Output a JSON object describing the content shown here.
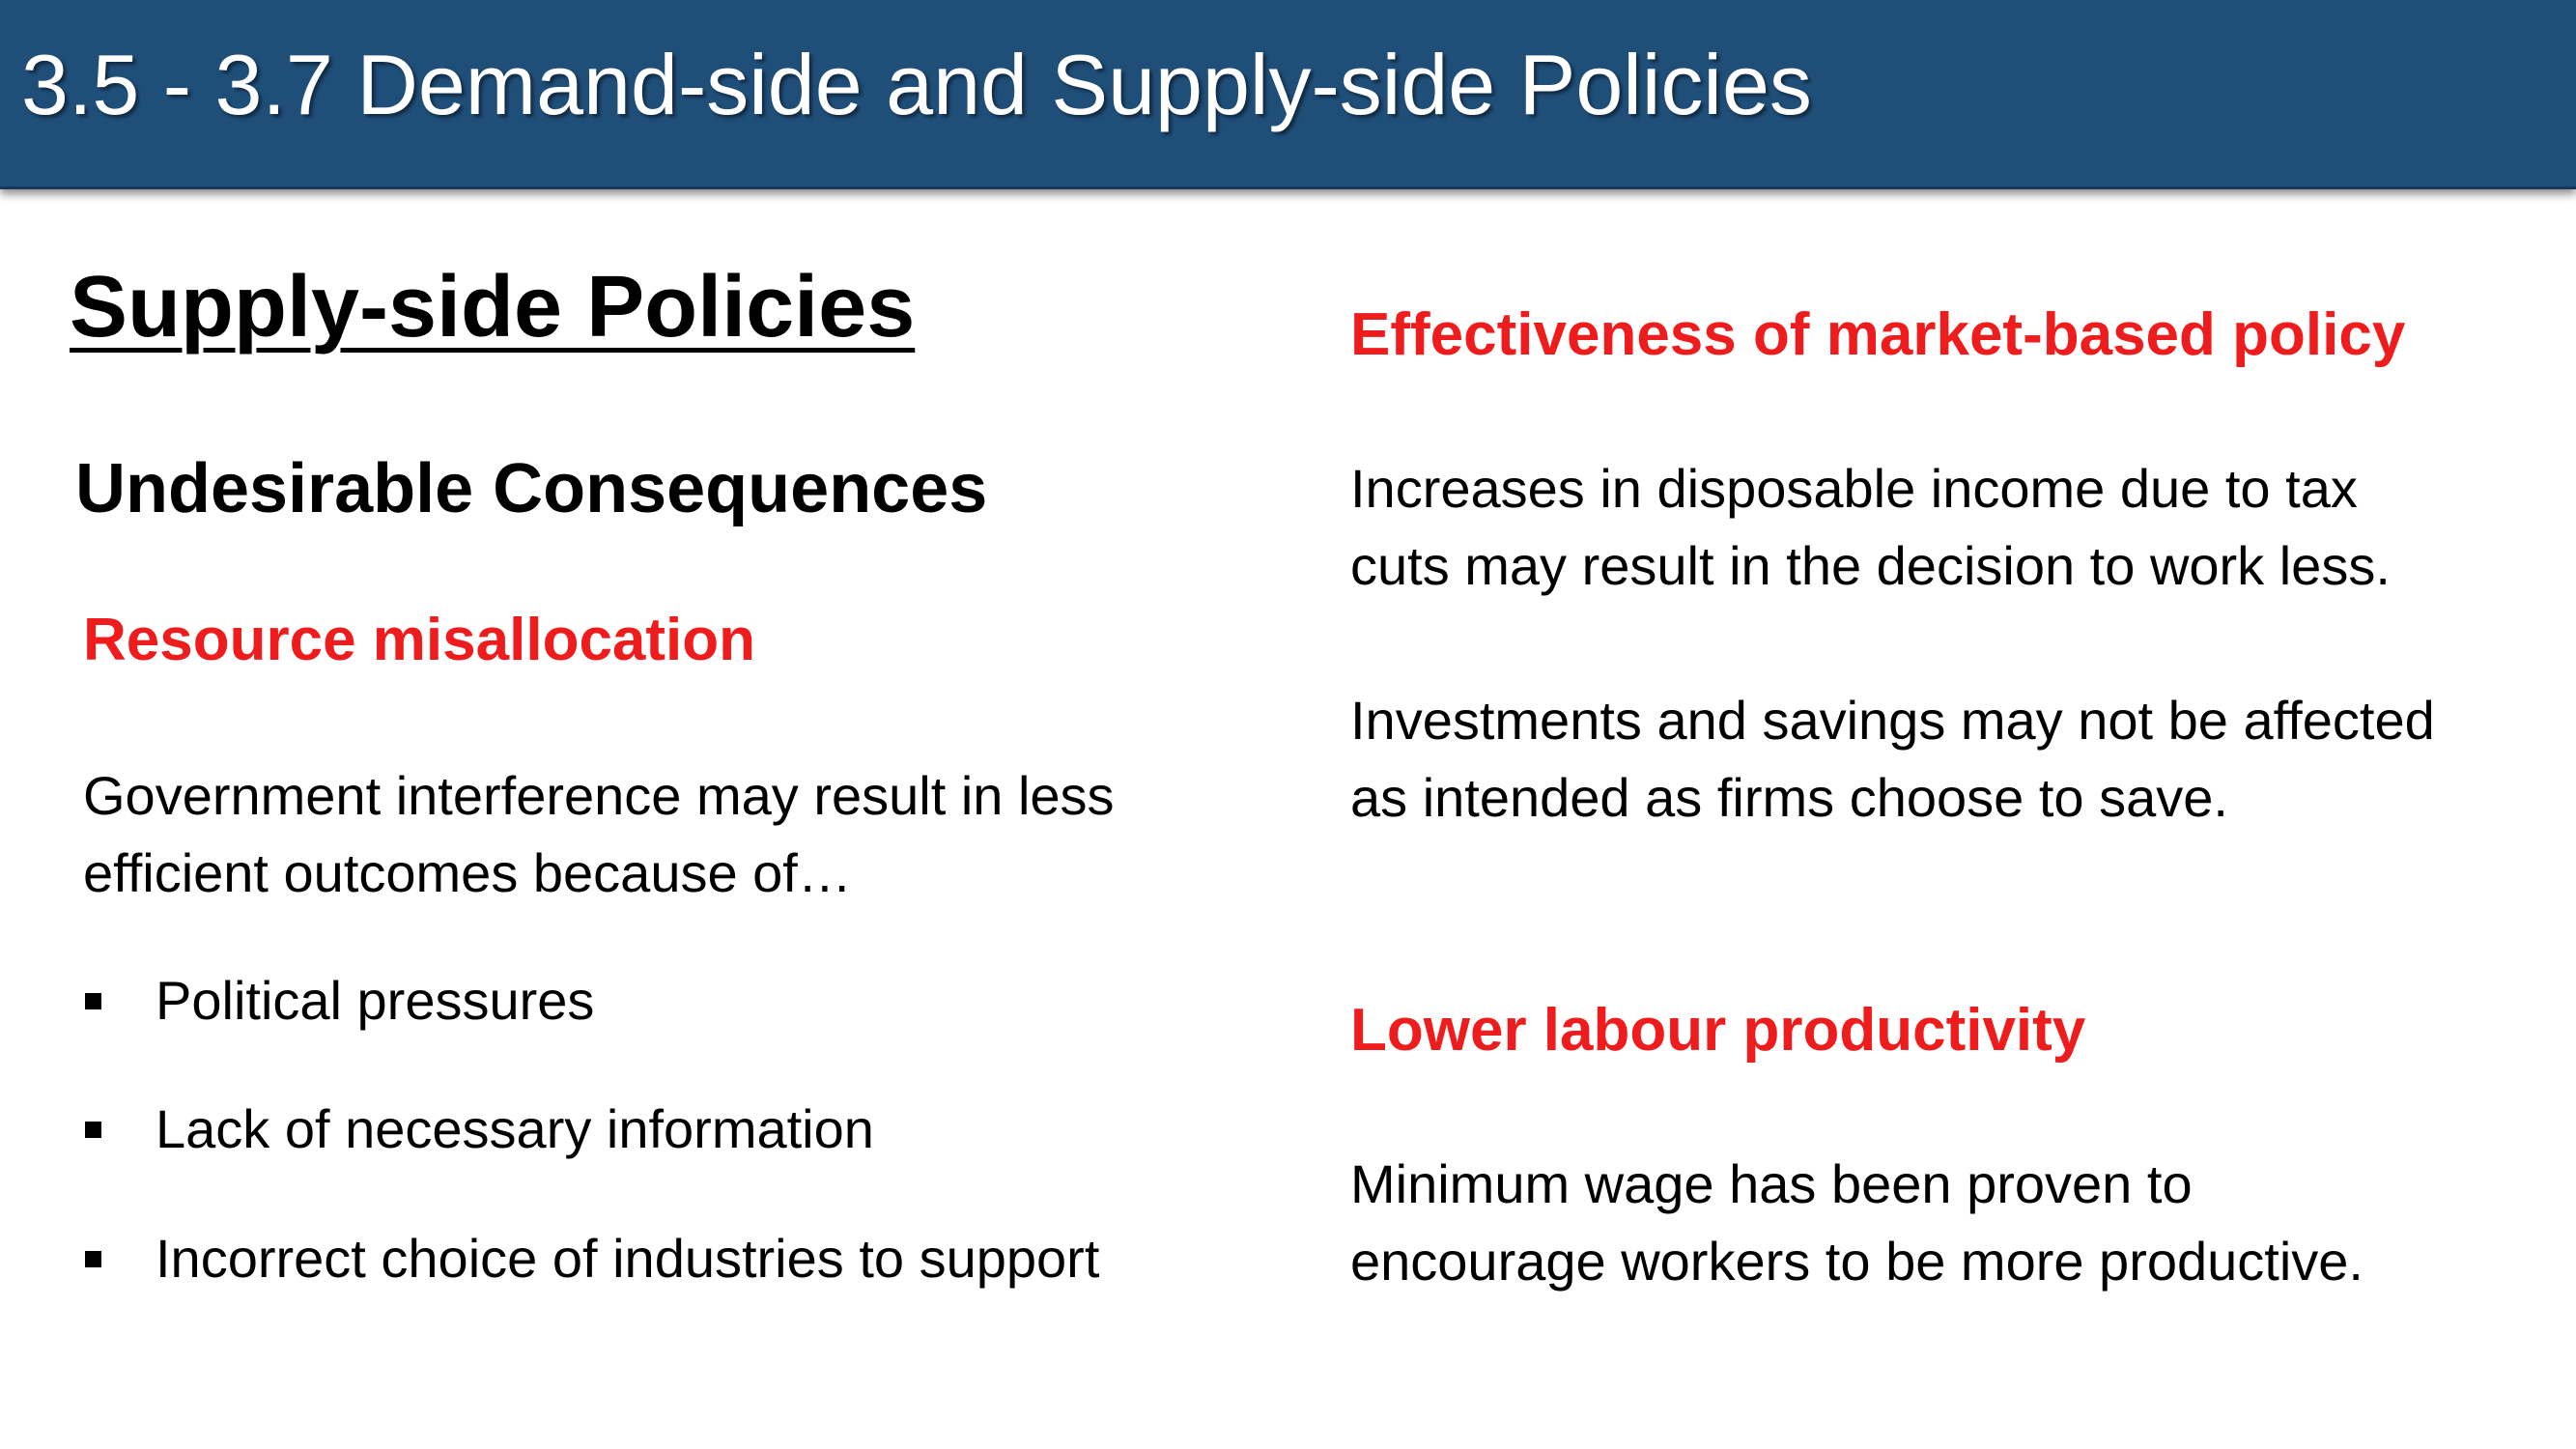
{
  "header": {
    "title": "3.5 - 3.7 Demand-side and Supply-side Policies"
  },
  "left": {
    "heading": "Supply-side Policies",
    "subheading": "Undesirable Consequences",
    "resource_heading": "Resource misallocation",
    "resource_text_line1": "Government interference may result in less",
    "resource_text_line2": "efficient outcomes because of…",
    "bullets": [
      "Political pressures",
      "Lack of necessary information",
      "Incorrect choice of industries to support"
    ]
  },
  "right": {
    "effectiveness_heading": "Effectiveness of market-based policy",
    "effectiveness_p1_line1": "Increases in disposable income due to tax",
    "effectiveness_p1_line2": "cuts may result in the decision to work less.",
    "effectiveness_p2_line1": "Investments and savings may not be affected",
    "effectiveness_p2_line2": "as intended as firms choose to save.",
    "labour_heading": "Lower labour productivity",
    "labour_line1": "Minimum wage has been proven to",
    "labour_line2": "encourage workers to be more productive."
  },
  "colors": {
    "title_bar": "#1f4e79",
    "accent_red": "#ee1c1c"
  }
}
